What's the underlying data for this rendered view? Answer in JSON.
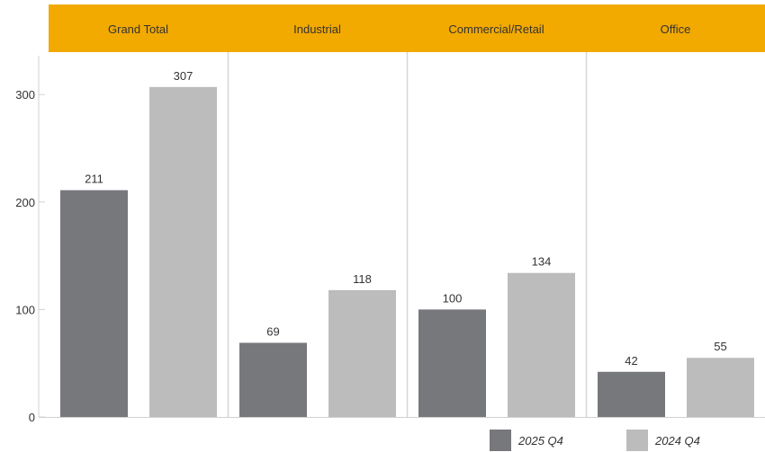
{
  "chart_data": {
    "type": "bar",
    "categories": [
      "Grand Total",
      "Industrial",
      "Commercial/Retail",
      "Office"
    ],
    "series": [
      {
        "name": "2025 Q4",
        "values": [
          211,
          69,
          100,
          42
        ],
        "color": "#76787b"
      },
      {
        "name": "2024 Q4",
        "values": [
          307,
          118,
          134,
          55
        ],
        "color": "#bcbcbc"
      }
    ],
    "y_ticks": [
      "0",
      "100",
      "200",
      "300"
    ],
    "ylim": [
      0,
      339
    ],
    "header_color": "#f2a900",
    "grid": false,
    "legend": "bottom-right"
  }
}
